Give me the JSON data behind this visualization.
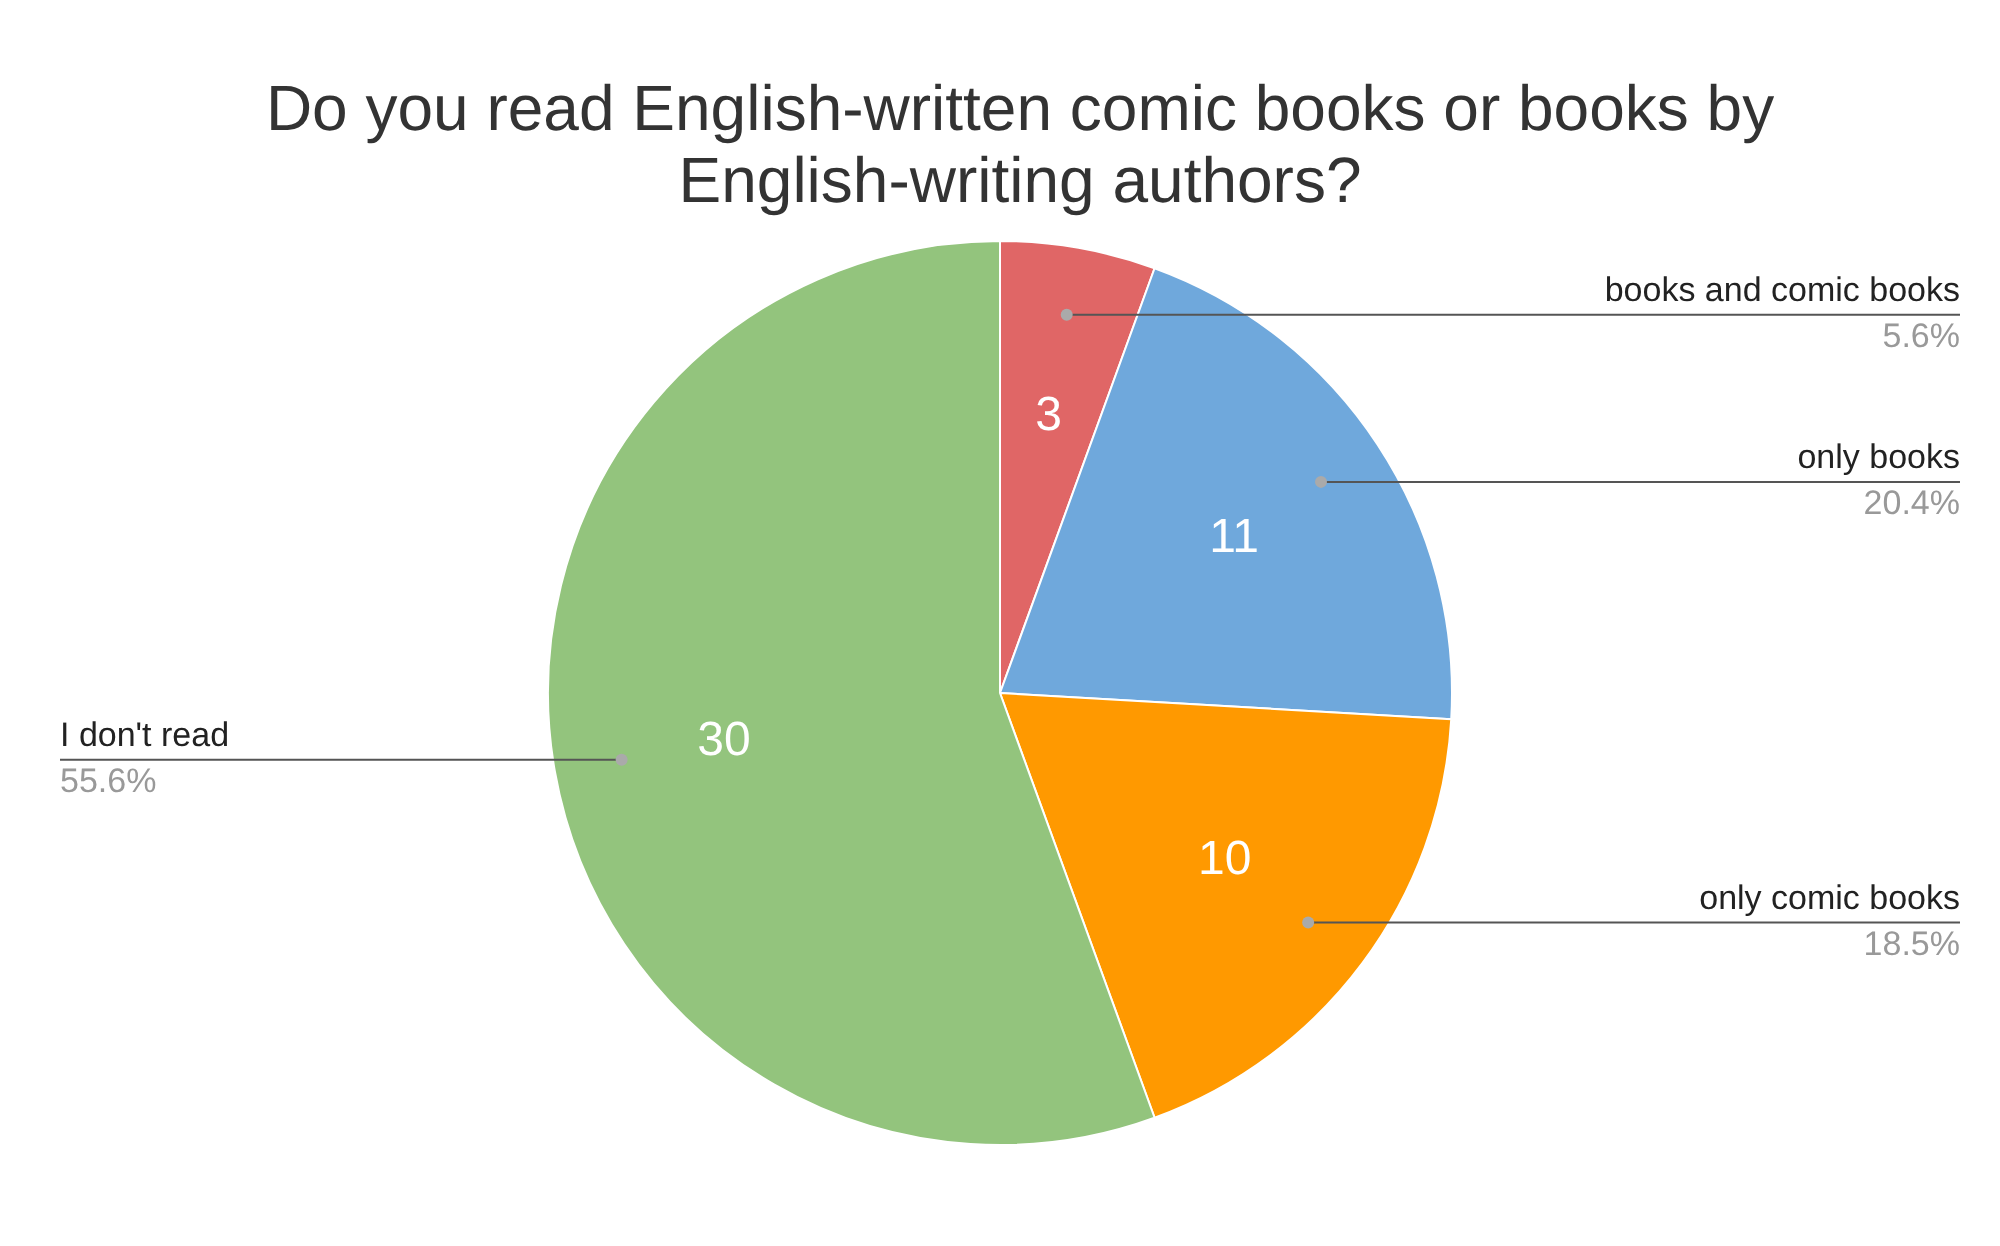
{
  "chart_data": {
    "type": "pie",
    "title": "Do you read English-written comic books or books by English-writing authors?",
    "categories": [
      "books and comic books",
      "only books",
      "only comic books",
      "I don't read"
    ],
    "values": [
      3,
      11,
      10,
      30
    ],
    "colors": [
      "#e06666",
      "#6fa8dc",
      "#ff9900",
      "#93c47d"
    ],
    "data_labels": true,
    "annotations": [
      "5.6%",
      "20.4%",
      "18.5%",
      "55.6%"
    ],
    "legend": false
  }
}
